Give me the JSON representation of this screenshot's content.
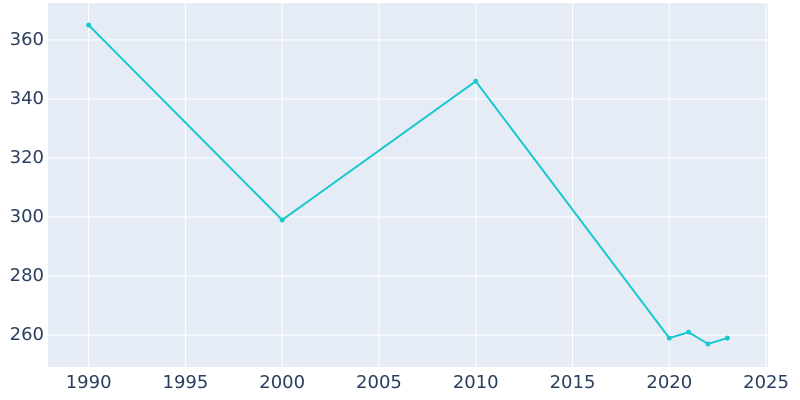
{
  "chart_data": {
    "type": "line",
    "x": [
      1990,
      2000,
      2010,
      2020,
      2021,
      2022,
      2023
    ],
    "series": [
      {
        "color": "#17c8cf",
        "values": [
          365,
          299,
          346,
          259,
          261,
          257,
          259
        ]
      }
    ],
    "xlim": [
      1987.9,
      2025.1
    ],
    "xticks": [
      1990,
      1995,
      2000,
      2005,
      2010,
      2015,
      2020,
      2025
    ],
    "ylim": [
      249.2,
      372.5
    ],
    "yticks": [
      260,
      280,
      300,
      320,
      340,
      360
    ],
    "grid": true
  }
}
